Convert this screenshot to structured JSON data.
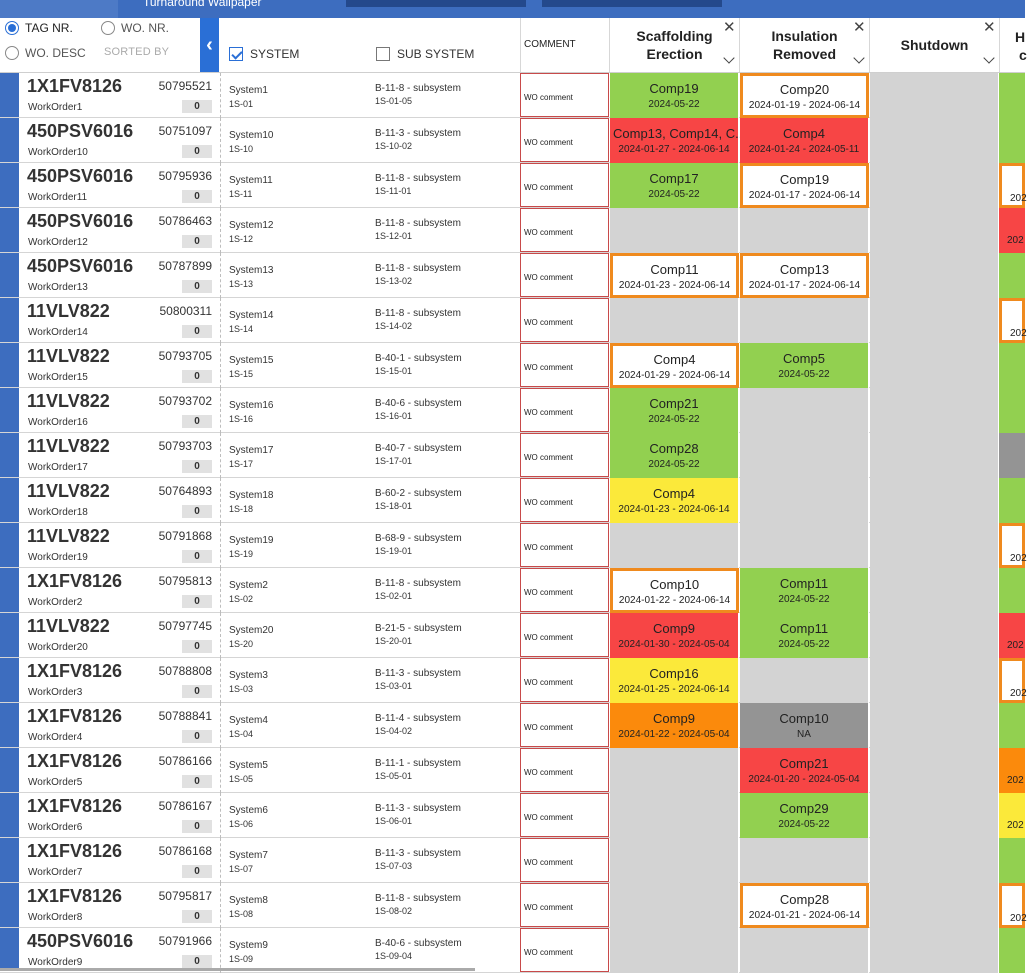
{
  "app": {
    "title": "Turnaround Wallpaper"
  },
  "filters": {
    "tag_nr": "TAG NR.",
    "wo_nr": "WO. NR.",
    "wo_desc": "WO. DESC",
    "sorted_by": "SORTED BY",
    "collapse_icon": "chevron-left-icon",
    "system_label": "SYSTEM",
    "system_checked": true,
    "subsystem_label": "SUB SYSTEM",
    "subsystem_checked": false
  },
  "columns": {
    "comment": "COMMENT",
    "scaffolding": "Scaffolding Erection",
    "insulation": "Insulation Removed",
    "shutdown": "Shutdown",
    "next_partial": "H",
    "next_partial2": "c",
    "close_icon": "close-icon",
    "chevron_icon": "chevron-down-icon"
  },
  "colors": {
    "accent": "#2a6fd6",
    "topbar": "#3d6dbf",
    "green": "#92d050",
    "red": "#f74545",
    "yellow": "#fbe93a",
    "orange": "#fb8a0c",
    "gray": "#949494",
    "empty": "#d3d3d3",
    "outline": "#ef8a1e"
  },
  "rows": [
    {
      "tag": "1X1FV8126",
      "wo_number": "50795521",
      "work_order": "WorkOrder1",
      "count": "0",
      "system": "System1",
      "system_code": "1S-01",
      "subsystem": "B-11-8 - subsystem",
      "subsystem_code": "1S-01-05",
      "comment": "WO comment",
      "scaffolding": {
        "name": "Comp19",
        "date": "2024-05-22",
        "status": "green",
        "outlined": false
      },
      "insulation": {
        "name": "Comp20",
        "date": "2024-01-19 - 2024-06-14",
        "status": "white",
        "outlined": true
      },
      "edge": {
        "status": "green",
        "outlined": false,
        "text": ""
      }
    },
    {
      "tag": "450PSV6016",
      "wo_number": "50751097",
      "work_order": "WorkOrder10",
      "count": "0",
      "system": "System10",
      "system_code": "1S-10",
      "subsystem": "B-11-3 - subsystem",
      "subsystem_code": "1S-10-02",
      "comment": "WO comment",
      "scaffolding": {
        "name": "Comp13, Comp14, C...",
        "date": "2024-01-27 - 2024-06-14",
        "status": "red",
        "outlined": false
      },
      "insulation": {
        "name": "Comp4",
        "date": "2024-01-24 - 2024-05-11",
        "status": "red",
        "outlined": false
      },
      "edge": {
        "status": "green",
        "outlined": false,
        "text": ""
      }
    },
    {
      "tag": "450PSV6016",
      "wo_number": "50795936",
      "work_order": "WorkOrder11",
      "count": "0",
      "system": "System11",
      "system_code": "1S-11",
      "subsystem": "B-11-8 - subsystem",
      "subsystem_code": "1S-11-01",
      "comment": "WO comment",
      "scaffolding": {
        "name": "Comp17",
        "date": "2024-05-22",
        "status": "green",
        "outlined": false
      },
      "insulation": {
        "name": "Comp19",
        "date": "2024-01-17 - 2024-06-14",
        "status": "white",
        "outlined": true
      },
      "edge": {
        "status": "white",
        "outlined": true,
        "text": "202"
      }
    },
    {
      "tag": "450PSV6016",
      "wo_number": "50786463",
      "work_order": "WorkOrder12",
      "count": "0",
      "system": "System12",
      "system_code": "1S-12",
      "subsystem": "B-11-8 - subsystem",
      "subsystem_code": "1S-12-01",
      "comment": "WO comment",
      "scaffolding": null,
      "insulation": null,
      "edge": {
        "status": "red",
        "outlined": false,
        "text": "202"
      }
    },
    {
      "tag": "450PSV6016",
      "wo_number": "50787899",
      "work_order": "WorkOrder13",
      "count": "0",
      "system": "System13",
      "system_code": "1S-13",
      "subsystem": "B-11-8 - subsystem",
      "subsystem_code": "1S-13-02",
      "comment": "WO comment",
      "scaffolding": {
        "name": "Comp11",
        "date": "2024-01-23 - 2024-06-14",
        "status": "white",
        "outlined": true
      },
      "insulation": {
        "name": "Comp13",
        "date": "2024-01-17 - 2024-06-14",
        "status": "white",
        "outlined": true
      },
      "edge": {
        "status": "green",
        "outlined": false,
        "text": ""
      }
    },
    {
      "tag": "11VLV822",
      "wo_number": "50800311",
      "work_order": "WorkOrder14",
      "count": "0",
      "system": "System14",
      "system_code": "1S-14",
      "subsystem": "B-11-8 - subsystem",
      "subsystem_code": "1S-14-02",
      "comment": "WO comment",
      "scaffolding": null,
      "insulation": null,
      "edge": {
        "status": "white",
        "outlined": true,
        "text": "202"
      }
    },
    {
      "tag": "11VLV822",
      "wo_number": "50793705",
      "work_order": "WorkOrder15",
      "count": "0",
      "system": "System15",
      "system_code": "1S-15",
      "subsystem": "B-40-1 - subsystem",
      "subsystem_code": "1S-15-01",
      "comment": "WO comment",
      "scaffolding": {
        "name": "Comp4",
        "date": "2024-01-29 - 2024-06-14",
        "status": "white",
        "outlined": true
      },
      "insulation": {
        "name": "Comp5",
        "date": "2024-05-22",
        "status": "green",
        "outlined": false
      },
      "edge": {
        "status": "green",
        "outlined": false,
        "text": ""
      }
    },
    {
      "tag": "11VLV822",
      "wo_number": "50793702",
      "work_order": "WorkOrder16",
      "count": "0",
      "system": "System16",
      "system_code": "1S-16",
      "subsystem": "B-40-6 - subsystem",
      "subsystem_code": "1S-16-01",
      "comment": "WO comment",
      "scaffolding": {
        "name": "Comp21",
        "date": "2024-05-22",
        "status": "green",
        "outlined": false
      },
      "insulation": null,
      "edge": {
        "status": "green",
        "outlined": false,
        "text": ""
      }
    },
    {
      "tag": "11VLV822",
      "wo_number": "50793703",
      "work_order": "WorkOrder17",
      "count": "0",
      "system": "System17",
      "system_code": "1S-17",
      "subsystem": "B-40-7 - subsystem",
      "subsystem_code": "1S-17-01",
      "comment": "WO comment",
      "scaffolding": {
        "name": "Comp28",
        "date": "2024-05-22",
        "status": "green",
        "outlined": false
      },
      "insulation": null,
      "edge": {
        "status": "gray",
        "outlined": false,
        "text": ""
      }
    },
    {
      "tag": "11VLV822",
      "wo_number": "50764893",
      "work_order": "WorkOrder18",
      "count": "0",
      "system": "System18",
      "system_code": "1S-18",
      "subsystem": "B-60-2 - subsystem",
      "subsystem_code": "1S-18-01",
      "comment": "WO comment",
      "scaffolding": {
        "name": "Comp4",
        "date": "2024-01-23 - 2024-06-14",
        "status": "yellow",
        "outlined": false
      },
      "insulation": null,
      "edge": {
        "status": "green",
        "outlined": false,
        "text": ""
      }
    },
    {
      "tag": "11VLV822",
      "wo_number": "50791868",
      "work_order": "WorkOrder19",
      "count": "0",
      "system": "System19",
      "system_code": "1S-19",
      "subsystem": "B-68-9 - subsystem",
      "subsystem_code": "1S-19-01",
      "comment": "WO comment",
      "scaffolding": null,
      "insulation": null,
      "edge": {
        "status": "white",
        "outlined": true,
        "text": "202"
      }
    },
    {
      "tag": "1X1FV8126",
      "wo_number": "50795813",
      "work_order": "WorkOrder2",
      "count": "0",
      "system": "System2",
      "system_code": "1S-02",
      "subsystem": "B-11-8 - subsystem",
      "subsystem_code": "1S-02-01",
      "comment": "WO comment",
      "scaffolding": {
        "name": "Comp10",
        "date": "2024-01-22 - 2024-06-14",
        "status": "white",
        "outlined": true
      },
      "insulation": {
        "name": "Comp11",
        "date": "2024-05-22",
        "status": "green",
        "outlined": false
      },
      "edge": {
        "status": "green",
        "outlined": false,
        "text": ""
      }
    },
    {
      "tag": "11VLV822",
      "wo_number": "50797745",
      "work_order": "WorkOrder20",
      "count": "0",
      "system": "System20",
      "system_code": "1S-20",
      "subsystem": "B-21-5 - subsystem",
      "subsystem_code": "1S-20-01",
      "comment": "WO comment",
      "scaffolding": {
        "name": "Comp9",
        "date": "2024-01-30 - 2024-05-04",
        "status": "red",
        "outlined": false
      },
      "insulation": {
        "name": "Comp11",
        "date": "2024-05-22",
        "status": "green",
        "outlined": false
      },
      "edge": {
        "status": "red",
        "outlined": false,
        "text": "202"
      }
    },
    {
      "tag": "1X1FV8126",
      "wo_number": "50788808",
      "work_order": "WorkOrder3",
      "count": "0",
      "system": "System3",
      "system_code": "1S-03",
      "subsystem": "B-11-3 - subsystem",
      "subsystem_code": "1S-03-01",
      "comment": "WO comment",
      "scaffolding": {
        "name": "Comp16",
        "date": "2024-01-25 - 2024-06-14",
        "status": "yellow",
        "outlined": false
      },
      "insulation": null,
      "edge": {
        "status": "white",
        "outlined": true,
        "text": "202"
      }
    },
    {
      "tag": "1X1FV8126",
      "wo_number": "50788841",
      "work_order": "WorkOrder4",
      "count": "0",
      "system": "System4",
      "system_code": "1S-04",
      "subsystem": "B-11-4 - subsystem",
      "subsystem_code": "1S-04-02",
      "comment": "WO comment",
      "scaffolding": {
        "name": "Comp9",
        "date": "2024-01-22 - 2024-05-04",
        "status": "orange",
        "outlined": false
      },
      "insulation": {
        "name": "Comp10",
        "date": "NA",
        "status": "gray",
        "outlined": false
      },
      "edge": {
        "status": "green",
        "outlined": false,
        "text": ""
      }
    },
    {
      "tag": "1X1FV8126",
      "wo_number": "50786166",
      "work_order": "WorkOrder5",
      "count": "0",
      "system": "System5",
      "system_code": "1S-05",
      "subsystem": "B-11-1 - subsystem",
      "subsystem_code": "1S-05-01",
      "comment": "WO comment",
      "scaffolding": null,
      "insulation": {
        "name": "Comp21",
        "date": "2024-01-20 - 2024-05-04",
        "status": "red",
        "outlined": false
      },
      "edge": {
        "status": "orange",
        "outlined": false,
        "text": "202"
      }
    },
    {
      "tag": "1X1FV8126",
      "wo_number": "50786167",
      "work_order": "WorkOrder6",
      "count": "0",
      "system": "System6",
      "system_code": "1S-06",
      "subsystem": "B-11-3 - subsystem",
      "subsystem_code": "1S-06-01",
      "comment": "WO comment",
      "scaffolding": null,
      "insulation": {
        "name": "Comp29",
        "date": "2024-05-22",
        "status": "green",
        "outlined": false
      },
      "edge": {
        "status": "yellow",
        "outlined": false,
        "text": "202"
      }
    },
    {
      "tag": "1X1FV8126",
      "wo_number": "50786168",
      "work_order": "WorkOrder7",
      "count": "0",
      "system": "System7",
      "system_code": "1S-07",
      "subsystem": "B-11-3 - subsystem",
      "subsystem_code": "1S-07-03",
      "comment": "WO comment",
      "scaffolding": null,
      "insulation": null,
      "edge": {
        "status": "green",
        "outlined": false,
        "text": ""
      }
    },
    {
      "tag": "1X1FV8126",
      "wo_number": "50795817",
      "work_order": "WorkOrder8",
      "count": "0",
      "system": "System8",
      "system_code": "1S-08",
      "subsystem": "B-11-8 - subsystem",
      "subsystem_code": "1S-08-02",
      "comment": "WO comment",
      "scaffolding": null,
      "insulation": {
        "name": "Comp28",
        "date": "2024-01-21 - 2024-06-14",
        "status": "white",
        "outlined": true
      },
      "edge": {
        "status": "white",
        "outlined": true,
        "text": "202"
      }
    },
    {
      "tag": "450PSV6016",
      "wo_number": "50791966",
      "work_order": "WorkOrder9",
      "count": "0",
      "system": "System9",
      "system_code": "1S-09",
      "subsystem": "B-40-6 - subsystem",
      "subsystem_code": "1S-09-04",
      "comment": "WO comment",
      "scaffolding": null,
      "insulation": null,
      "edge": {
        "status": "green",
        "outlined": false,
        "text": ""
      }
    }
  ]
}
